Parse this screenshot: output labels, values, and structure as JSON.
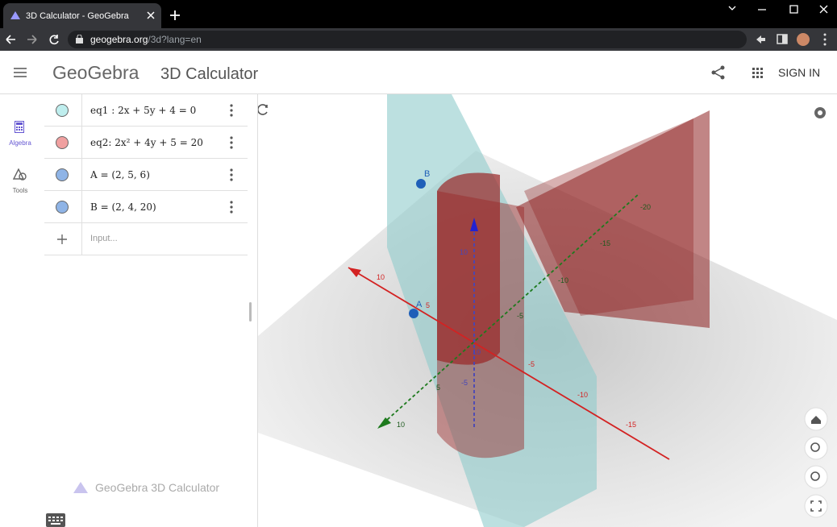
{
  "browser": {
    "tab_title": "3D Calculator - GeoGebra",
    "url_host": "geogebra.org",
    "url_path": "/3d?lang=en"
  },
  "header": {
    "logo": "GeoGebra",
    "app_title": "3D Calculator",
    "sign_in": "SIGN IN"
  },
  "sidebar": {
    "items": [
      "Algebra",
      "Tools"
    ]
  },
  "algebra": {
    "items": [
      "eq1 : 2x + 5y + 4 = 0",
      "eq2: 2x² + 4y + 5 = 20",
      "A = (2, 5, 6)",
      "B = (2, 4, 20)"
    ],
    "input_placeholder": "Input...",
    "watermark": "GeoGebra 3D Calculator"
  },
  "graphics": {
    "points": [
      "A",
      "B"
    ],
    "x_axis_labels": [
      "10",
      "5",
      "-5",
      "-10",
      "-15"
    ],
    "y_axis_labels": [
      "10",
      "5",
      "-5",
      "-10",
      "-15",
      "-20"
    ],
    "z_axis_labels": [
      "10",
      "10",
      "-5"
    ]
  }
}
